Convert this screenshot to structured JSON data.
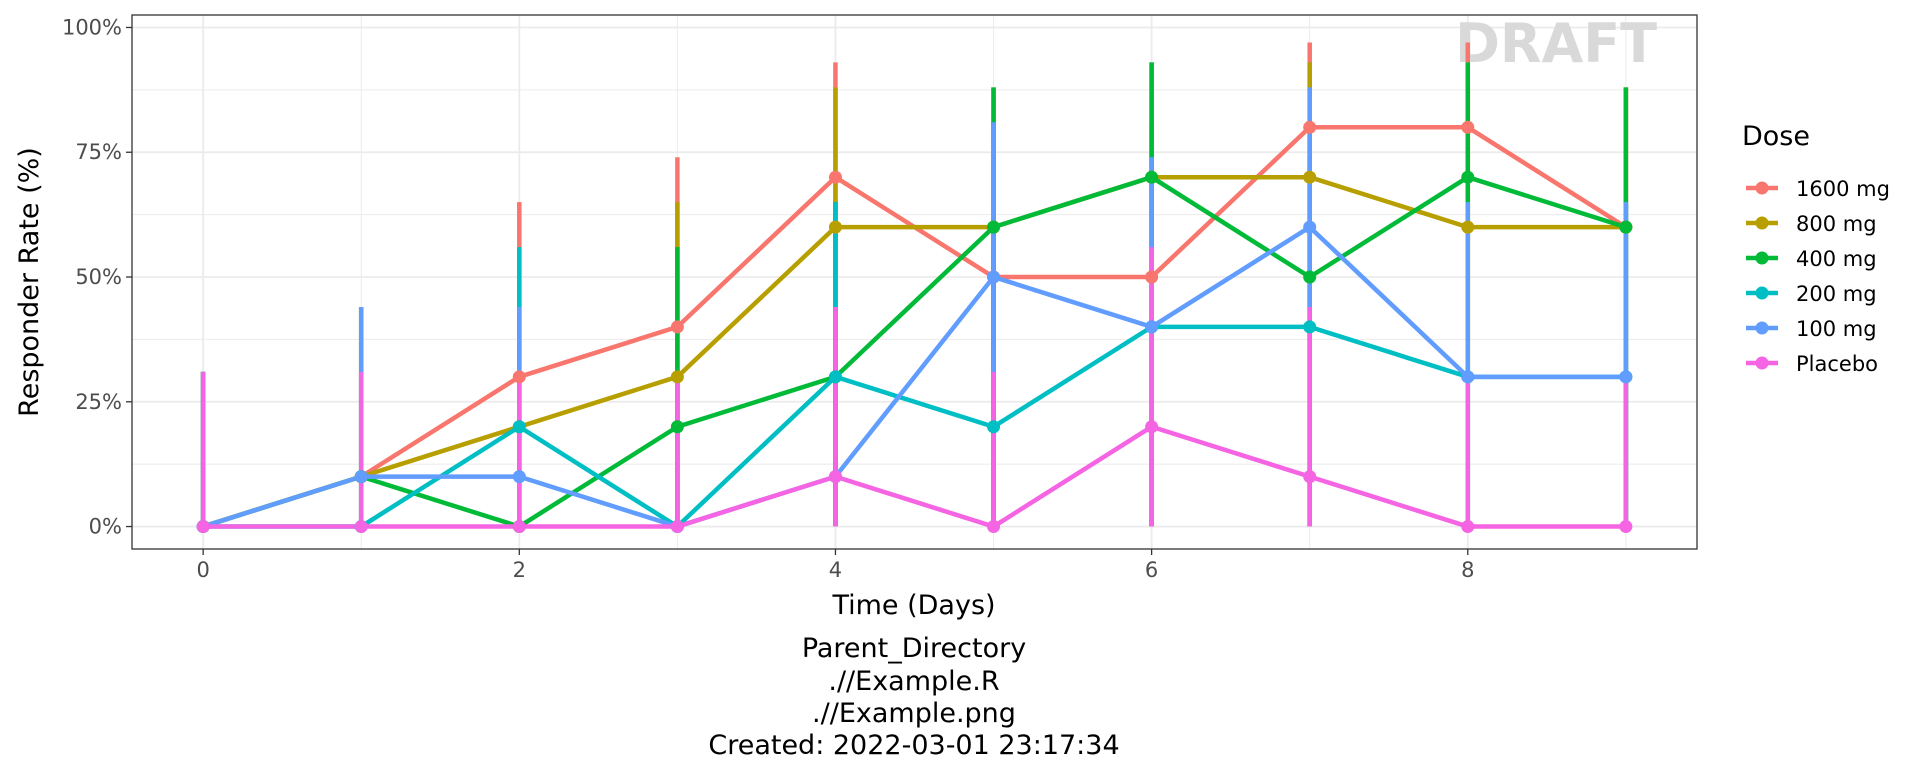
{
  "chart_data": {
    "type": "line",
    "xlabel": "Time (Days)",
    "ylabel": "Responder Rate (%)",
    "xlim": [
      -0.45,
      9.45
    ],
    "ylim": [
      -0.045,
      1.025
    ],
    "x_ticks": [
      0,
      2,
      4,
      6,
      8
    ],
    "x_tick_labels": [
      "0",
      "2",
      "4",
      "6",
      "8"
    ],
    "y_ticks": [
      0,
      0.25,
      0.5,
      0.75,
      1.0
    ],
    "y_tick_labels": [
      "0%",
      "25%",
      "50%",
      "75%",
      "100%"
    ],
    "grid": true,
    "legend": {
      "title": "Dose",
      "position": "right"
    },
    "watermark": "DRAFT",
    "x": [
      0,
      1,
      2,
      3,
      4,
      5,
      6,
      7,
      8,
      9
    ],
    "series": [
      {
        "name": "1600 mg",
        "color": "#F8766D",
        "values": [
          0,
          0.1,
          0.3,
          0.4,
          0.7,
          0.5,
          0.5,
          0.8,
          0.8,
          0.6
        ],
        "upper": [
          0.31,
          0.44,
          0.65,
          0.74,
          0.93,
          0.81,
          0.81,
          0.97,
          0.97,
          0.88
        ]
      },
      {
        "name": "800 mg",
        "color": "#B79F00",
        "values": [
          0,
          0.1,
          0.2,
          0.3,
          0.6,
          0.6,
          0.7,
          0.7,
          0.6,
          0.6
        ],
        "upper": [
          0.31,
          0.44,
          0.56,
          0.65,
          0.88,
          0.88,
          0.93,
          0.93,
          0.88,
          0.88
        ]
      },
      {
        "name": "400 mg",
        "color": "#00BA38",
        "values": [
          0,
          0.1,
          0,
          0.2,
          0.3,
          0.6,
          0.7,
          0.5,
          0.7,
          0.6
        ],
        "upper": [
          0.31,
          0.44,
          0.31,
          0.56,
          0.65,
          0.88,
          0.93,
          0.81,
          0.93,
          0.88
        ]
      },
      {
        "name": "200 mg",
        "color": "#00BFC4",
        "values": [
          0,
          0,
          0.2,
          0,
          0.3,
          0.2,
          0.4,
          0.4,
          0.3,
          0.3
        ],
        "upper": [
          0.31,
          0.31,
          0.56,
          0.31,
          0.65,
          0.56,
          0.74,
          0.74,
          0.65,
          0.65
        ]
      },
      {
        "name": "100 mg",
        "color": "#619CFF",
        "values": [
          0,
          0.1,
          0.1,
          0,
          0.1,
          0.5,
          0.4,
          0.6,
          0.3,
          0.3
        ],
        "upper": [
          0.31,
          0.44,
          0.44,
          0.31,
          0.44,
          0.81,
          0.74,
          0.88,
          0.65,
          0.65
        ]
      },
      {
        "name": "Placebo",
        "color": "#F564E3",
        "values": [
          0,
          0,
          0,
          0,
          0.1,
          0,
          0.2,
          0.1,
          0,
          0
        ],
        "upper": [
          0.31,
          0.31,
          0.31,
          0.31,
          0.44,
          0.31,
          0.56,
          0.44,
          0.31,
          0.31
        ]
      }
    ]
  },
  "caption": {
    "line1": "Parent_Directory",
    "line2": ".//Example.R",
    "line3": ".//Example.png",
    "line4": "Created: 2022-03-01 23:17:34"
  }
}
